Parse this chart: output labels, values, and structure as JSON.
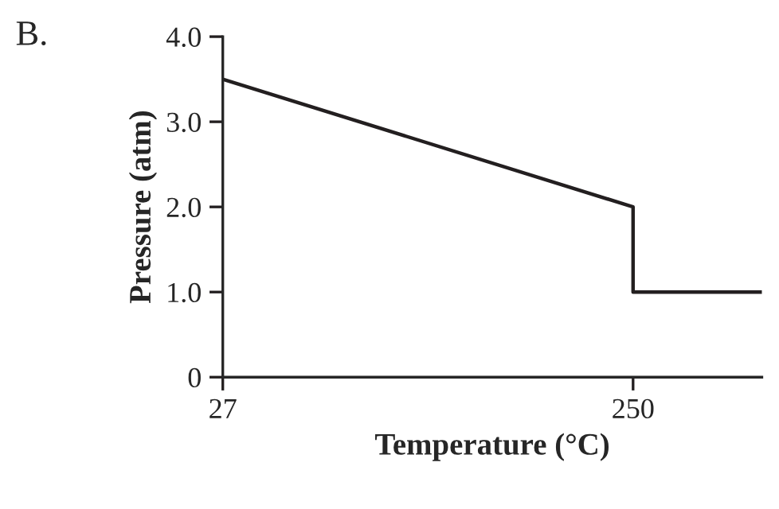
{
  "chart_data": {
    "type": "line",
    "xlabel": "Temperature (°C)",
    "ylabel": "Pressure (atm)",
    "annotations": [
      "B."
    ],
    "x": [
      27,
      250,
      250,
      320
    ],
    "series": [
      {
        "color": "#231f20",
        "values": [
          3.5,
          2.0,
          1.0,
          1.0
        ]
      }
    ],
    "xlim": [
      27,
      320
    ],
    "xticks": [
      27,
      250
    ],
    "ylim": [
      0,
      4.0
    ],
    "yticks": [
      0,
      {
        "value": 1.0,
        "label": "1.0"
      },
      {
        "value": 2.0,
        "label": "2.0"
      },
      {
        "value": 3.0,
        "label": "3.0"
      },
      {
        "value": 4.0,
        "label": "4.0"
      }
    ],
    "grid": false,
    "legend": false,
    "marker": "none",
    "line_style": "solid"
  }
}
